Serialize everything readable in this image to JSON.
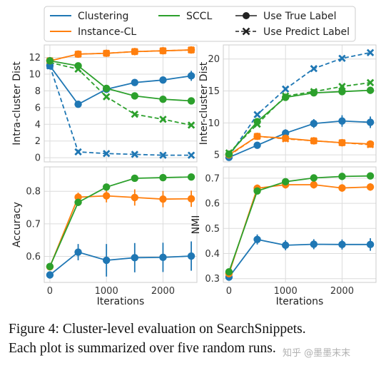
{
  "chart_data": {
    "type": "line",
    "x_label": "Iterations",
    "x_ticks": [
      0,
      1000,
      2000
    ],
    "xlim": [
      -100,
      2600
    ],
    "methods": [
      {
        "name": "Clustering",
        "color": "#1f77b4"
      },
      {
        "name": "Instance-CL",
        "color": "#ff7f0e"
      },
      {
        "name": "SCCL",
        "color": "#2ca02c"
      }
    ],
    "label_styles": [
      {
        "name": "Use True Label",
        "line": "solid",
        "marker": "circle"
      },
      {
        "name": "Use Predict Label",
        "line": "dashed",
        "marker": "x"
      }
    ],
    "panels": [
      {
        "ylabel": "Intra-cluster Dist",
        "ylim": [
          -0.5,
          13.5
        ],
        "yticks": [
          0,
          2,
          4,
          6,
          8,
          10,
          12
        ],
        "show_xticks": false,
        "series": [
          {
            "method": "Clustering",
            "label_type": "Use True Label",
            "x": [
              0,
              500,
              1000,
              1500,
              2000,
              2500
            ],
            "y": [
              11.0,
              6.4,
              8.2,
              9.0,
              9.3,
              9.8
            ],
            "err": [
              0,
              0.3,
              0.3,
              0.3,
              0.4,
              0.6
            ]
          },
          {
            "method": "Instance-CL",
            "label_type": "Use True Label",
            "x": [
              0,
              500,
              1000,
              1500,
              2000,
              2500
            ],
            "y": [
              11.6,
              12.4,
              12.5,
              12.7,
              12.8,
              12.9
            ],
            "err": [
              0,
              0.2,
              0.2,
              0.2,
              0.2,
              0.2
            ]
          },
          {
            "method": "SCCL",
            "label_type": "Use True Label",
            "x": [
              0,
              500,
              1000,
              1500,
              2000,
              2500
            ],
            "y": [
              11.6,
              11.0,
              8.3,
              7.4,
              7.0,
              6.8
            ],
            "err": [
              0,
              0.2,
              0.2,
              0.2,
              0.2,
              0.2
            ]
          },
          {
            "method": "Clustering",
            "label_type": "Use Predict Label",
            "x": [
              0,
              500,
              1000,
              1500,
              2000,
              2500
            ],
            "y": [
              11.0,
              0.7,
              0.5,
              0.4,
              0.3,
              0.3
            ],
            "err": [
              0,
              0,
              0,
              0,
              0,
              0
            ]
          },
          {
            "method": "Instance-CL",
            "label_type": "Use Predict Label",
            "x": [
              0,
              500,
              1000,
              1500,
              2000,
              2500
            ],
            "y": [
              11.6,
              12.4,
              12.5,
              12.7,
              12.8,
              12.9
            ],
            "err": [
              0,
              0,
              0,
              0,
              0,
              0
            ]
          },
          {
            "method": "SCCL",
            "label_type": "Use Predict Label",
            "x": [
              0,
              500,
              1000,
              1500,
              2000,
              2500
            ],
            "y": [
              11.4,
              10.6,
              7.3,
              5.2,
              4.6,
              3.9
            ],
            "err": [
              0,
              0,
              0,
              0,
              0,
              0
            ]
          }
        ]
      },
      {
        "ylabel": "Inter-cluster Dist",
        "ylim": [
          3.9,
          22.2
        ],
        "yticks": [
          5,
          10,
          15,
          20
        ],
        "show_xticks": false,
        "series": [
          {
            "method": "Clustering",
            "label_type": "Use True Label",
            "x": [
              0,
              500,
              1000,
              1500,
              2000,
              2500
            ],
            "y": [
              4.6,
              6.5,
              8.4,
              9.9,
              10.3,
              10.1
            ],
            "err": [
              0,
              0.4,
              0.6,
              0.7,
              0.9,
              0.9
            ]
          },
          {
            "method": "Instance-CL",
            "label_type": "Use True Label",
            "x": [
              0,
              500,
              1000,
              1500,
              2000,
              2500
            ],
            "y": [
              5.0,
              7.9,
              7.6,
              7.2,
              6.9,
              6.7
            ],
            "err": [
              0,
              0.2,
              0.3,
              0.3,
              0.3,
              0.3
            ]
          },
          {
            "method": "SCCL",
            "label_type": "Use True Label",
            "x": [
              0,
              500,
              1000,
              1500,
              2000,
              2500
            ],
            "y": [
              5.1,
              10.2,
              14.0,
              14.7,
              14.9,
              15.1
            ],
            "err": [
              0,
              0.5,
              0.5,
              0.4,
              0.5,
              0.5
            ]
          },
          {
            "method": "Clustering",
            "label_type": "Use Predict Label",
            "x": [
              0,
              500,
              1000,
              1500,
              2000,
              2500
            ],
            "y": [
              4.8,
              11.3,
              15.3,
              18.5,
              20.1,
              21.0
            ],
            "err": [
              0,
              0,
              0,
              0,
              0,
              0
            ]
          },
          {
            "method": "Instance-CL",
            "label_type": "Use Predict Label",
            "x": [
              0,
              500,
              1000,
              1500,
              2000,
              2500
            ],
            "y": [
              4.9,
              7.9,
              7.5,
              7.2,
              6.9,
              6.6
            ],
            "err": [
              0,
              0,
              0,
              0,
              0,
              0
            ]
          },
          {
            "method": "SCCL",
            "label_type": "Use Predict Label",
            "x": [
              0,
              500,
              1000,
              1500,
              2000,
              2500
            ],
            "y": [
              5.3,
              9.8,
              14.2,
              14.9,
              15.7,
              16.3
            ],
            "err": [
              0,
              0,
              0,
              0,
              0,
              0
            ]
          }
        ]
      },
      {
        "ylabel": "Accuracy",
        "ylim": [
          0.52,
          0.875
        ],
        "yticks": [
          0.6,
          0.7,
          0.8
        ],
        "show_xticks": true,
        "series": [
          {
            "method": "Clustering",
            "label_type": "Use True Label",
            "x": [
              0,
              500,
              1000,
              1500,
              2000,
              2500
            ],
            "y": [
              0.543,
              0.613,
              0.588,
              0.596,
              0.597,
              0.601
            ],
            "err": [
              0,
              0.025,
              0.05,
              0.045,
              0.045,
              0.045
            ]
          },
          {
            "method": "Instance-CL",
            "label_type": "Use True Label",
            "x": [
              0,
              500,
              1000,
              1500,
              2000,
              2500
            ],
            "y": [
              0.568,
              0.782,
              0.786,
              0.781,
              0.776,
              0.777
            ],
            "err": [
              0,
              0.014,
              0.02,
              0.025,
              0.025,
              0.025
            ]
          },
          {
            "method": "SCCL",
            "label_type": "Use True Label",
            "x": [
              0,
              500,
              1000,
              1500,
              2000,
              2500
            ],
            "y": [
              0.569,
              0.766,
              0.813,
              0.84,
              0.842,
              0.844
            ],
            "err": [
              0,
              0.01,
              0.01,
              0.01,
              0.01,
              0.01
            ]
          }
        ]
      },
      {
        "ylabel": "NMI",
        "ylim": [
          0.285,
          0.745
        ],
        "yticks": [
          0.3,
          0.4,
          0.5,
          0.6,
          0.7
        ],
        "show_xticks": true,
        "series": [
          {
            "method": "Clustering",
            "label_type": "Use True Label",
            "x": [
              0,
              500,
              1000,
              1500,
              2000,
              2500
            ],
            "y": [
              0.306,
              0.456,
              0.433,
              0.437,
              0.436,
              0.436
            ],
            "err": [
              0,
              0.02,
              0.02,
              0.02,
              0.02,
              0.025
            ]
          },
          {
            "method": "Instance-CL",
            "label_type": "Use True Label",
            "x": [
              0,
              500,
              1000,
              1500,
              2000,
              2500
            ],
            "y": [
              0.32,
              0.66,
              0.674,
              0.674,
              0.661,
              0.665
            ],
            "err": [
              0,
              0.015,
              0.015,
              0.015,
              0.015,
              0.015
            ]
          },
          {
            "method": "SCCL",
            "label_type": "Use True Label",
            "x": [
              0,
              500,
              1000,
              1500,
              2000,
              2500
            ],
            "y": [
              0.327,
              0.649,
              0.686,
              0.701,
              0.707,
              0.709
            ],
            "err": [
              0,
              0.01,
              0.01,
              0.01,
              0.01,
              0.01
            ]
          }
        ]
      }
    ]
  },
  "caption": {
    "line1": "Figure 4:  Cluster-level evaluation on SearchSnippets.",
    "line2": "Each plot is summarized over five random runs."
  },
  "watermark": "知乎 @墨墨末末"
}
